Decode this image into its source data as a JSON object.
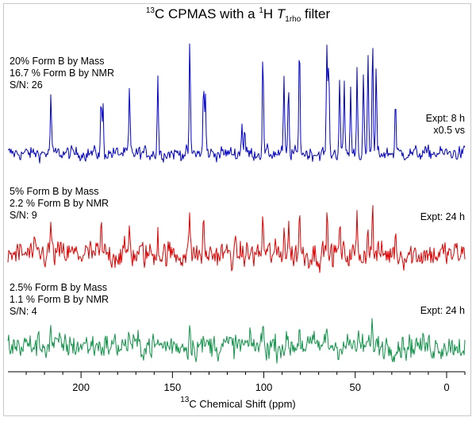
{
  "title": {
    "iso_sup": "13",
    "prefix": "C CPMAS with a ",
    "h_sup": "1",
    "h_text": "H ",
    "t_italic": "T",
    "t_sub": "1rho",
    "suffix": " filter"
  },
  "xlabel": {
    "iso_sup": "13",
    "text": "C Chemical Shift (ppm)"
  },
  "chart_data": {
    "type": "line",
    "title": "13C CPMAS with a 1H T1rho filter",
    "xlabel": "13C Chemical Shift (ppm)",
    "ylabel": "",
    "x_reversed": true,
    "xlim": [
      240,
      -10
    ],
    "xticks": [
      200,
      150,
      100,
      50,
      0
    ],
    "xtick_labels": [
      "200",
      "150",
      "100",
      "50",
      "0"
    ],
    "y_axis_shown": false,
    "grid": false,
    "series": [
      {
        "color": "#0000cc",
        "annotation": [
          "20% Form B by Mass",
          "16.7 % Form B by NMR",
          "S/N: 26"
        ],
        "expt": [
          "Expt: 8 h",
          "x0.5 vs"
        ],
        "noise": 0.045,
        "peaks": [
          {
            "ppm": 216.5,
            "h": 0.55
          },
          {
            "ppm": 189,
            "h": 0.48
          },
          {
            "ppm": 188,
            "h": 0.42
          },
          {
            "ppm": 173.5,
            "h": 0.58
          },
          {
            "ppm": 158,
            "h": 0.72
          },
          {
            "ppm": 140.5,
            "h": 1.0
          },
          {
            "ppm": 133,
            "h": 0.62
          },
          {
            "ppm": 132,
            "h": 0.55
          },
          {
            "ppm": 112,
            "h": 0.3
          },
          {
            "ppm": 110.5,
            "h": 0.24
          },
          {
            "ppm": 100.5,
            "h": 0.92
          },
          {
            "ppm": 89,
            "h": 0.68
          },
          {
            "ppm": 86.5,
            "h": 0.62
          },
          {
            "ppm": 80.5,
            "h": 1.08
          },
          {
            "ppm": 65.5,
            "h": 1.0
          },
          {
            "ppm": 64.5,
            "h": 0.85
          },
          {
            "ppm": 58.5,
            "h": 0.72
          },
          {
            "ppm": 56,
            "h": 0.65
          },
          {
            "ppm": 52.5,
            "h": 0.58
          },
          {
            "ppm": 49,
            "h": 0.78
          },
          {
            "ppm": 45.5,
            "h": 0.7
          },
          {
            "ppm": 43,
            "h": 0.85
          },
          {
            "ppm": 40.5,
            "h": 1.02
          },
          {
            "ppm": 38.5,
            "h": 0.75
          },
          {
            "ppm": 28,
            "h": 0.5
          }
        ]
      },
      {
        "color": "#e00000",
        "annotation": [
          "5% Form B by Mass",
          "2.2 % Form B by NMR",
          "S/N: 9"
        ],
        "expt": [
          "Expt: 24 h"
        ],
        "noise": 0.13,
        "peaks": [
          {
            "ppm": 216.5,
            "h": 0.45
          },
          {
            "ppm": 189,
            "h": 0.35
          },
          {
            "ppm": 173.5,
            "h": 0.42
          },
          {
            "ppm": 158,
            "h": 0.38
          },
          {
            "ppm": 140.5,
            "h": 0.6
          },
          {
            "ppm": 133,
            "h": 0.4
          },
          {
            "ppm": 100.5,
            "h": 0.58
          },
          {
            "ppm": 89,
            "h": 0.45
          },
          {
            "ppm": 86.5,
            "h": 0.4
          },
          {
            "ppm": 80.5,
            "h": 0.65
          },
          {
            "ppm": 65.5,
            "h": 0.6
          },
          {
            "ppm": 58.5,
            "h": 0.42
          },
          {
            "ppm": 49,
            "h": 0.45
          },
          {
            "ppm": 43,
            "h": 0.48
          },
          {
            "ppm": 40.5,
            "h": 0.62
          },
          {
            "ppm": 28,
            "h": 0.35
          }
        ]
      },
      {
        "color": "#0e9447",
        "annotation": [
          "2.5% Form B by Mass",
          "1.1 % Form B by NMR",
          "S/N: 4"
        ],
        "expt": [
          "Expt: 24 h"
        ],
        "noise": 0.13,
        "peaks": [
          {
            "ppm": 216.5,
            "h": 0.28
          },
          {
            "ppm": 173.5,
            "h": 0.22
          },
          {
            "ppm": 140.5,
            "h": 0.3
          },
          {
            "ppm": 100.5,
            "h": 0.3
          },
          {
            "ppm": 80.5,
            "h": 0.35
          },
          {
            "ppm": 65.5,
            "h": 0.3
          },
          {
            "ppm": 40.5,
            "h": 0.3
          }
        ]
      }
    ]
  }
}
